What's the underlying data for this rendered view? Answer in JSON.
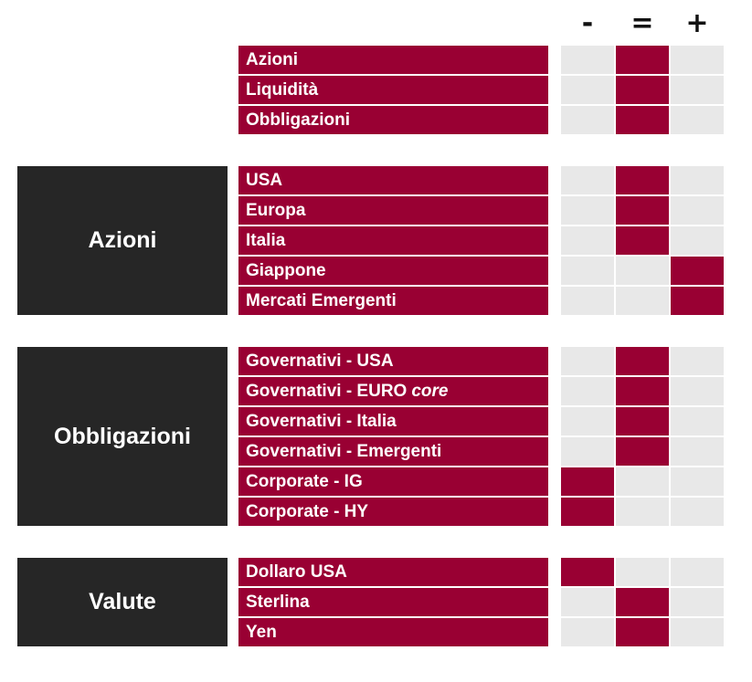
{
  "headers": [
    "-",
    "=",
    "+"
  ],
  "colors": {
    "active": "#990033",
    "inactive": "#e8e8e8",
    "group_bg": "#262626"
  },
  "groups": [
    {
      "label": "",
      "rows": [
        {
          "label": "Azioni",
          "rating": "="
        },
        {
          "label": "Liquidità",
          "rating": "="
        },
        {
          "label": "Obbligazioni",
          "rating": "="
        }
      ]
    },
    {
      "label": "Azioni",
      "rows": [
        {
          "label": "USA",
          "rating": "="
        },
        {
          "label": "Europa",
          "rating": "="
        },
        {
          "label": "Italia",
          "rating": "="
        },
        {
          "label": "Giappone",
          "rating": "+"
        },
        {
          "label": "Mercati Emergenti",
          "rating": "+"
        }
      ]
    },
    {
      "label": "Obbligazioni",
      "rows": [
        {
          "label": "Governativi - USA",
          "rating": "="
        },
        {
          "label": "Governativi - EURO",
          "label_em": "core",
          "rating": "="
        },
        {
          "label": "Governativi - Italia",
          "rating": "="
        },
        {
          "label": "Governativi - Emergenti",
          "rating": "="
        },
        {
          "label": "Corporate - IG",
          "rating": "-"
        },
        {
          "label": "Corporate - HY",
          "rating": "-"
        }
      ]
    },
    {
      "label": "Valute",
      "rows": [
        {
          "label": "Dollaro USA",
          "rating": "-"
        },
        {
          "label": "Sterlina",
          "rating": "="
        },
        {
          "label": "Yen",
          "rating": "="
        }
      ]
    }
  ]
}
